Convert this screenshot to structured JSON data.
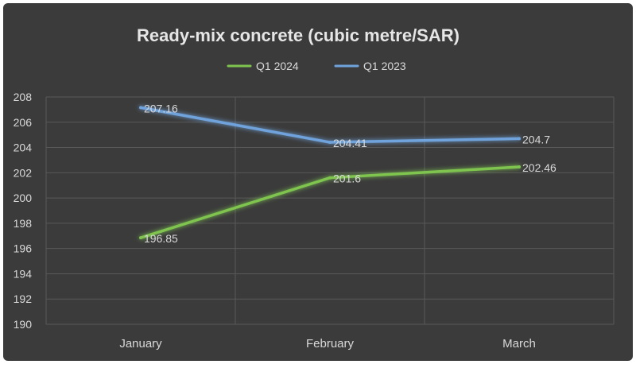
{
  "chart_data": {
    "type": "line",
    "title": "Ready-mix concrete (cubic metre/SAR)",
    "categories": [
      "January",
      "February",
      "March"
    ],
    "series": [
      {
        "name": "Q1 2024",
        "values": [
          196.85,
          201.6,
          202.46
        ],
        "labels": [
          "196.85",
          "201.6",
          "202.46"
        ],
        "color": "#7ec44f"
      },
      {
        "name": "Q1 2023",
        "values": [
          207.16,
          204.41,
          204.7
        ],
        "labels": [
          "207.16",
          "204.41",
          "204.7"
        ],
        "color": "#6fa3dc"
      }
    ],
    "ylim": [
      190,
      208
    ],
    "ytick_step": 2,
    "yticks": [
      "190",
      "192",
      "194",
      "196",
      "198",
      "200",
      "202",
      "204",
      "206",
      "208"
    ],
    "grid": true,
    "legend_position": "top-center",
    "xlabel": "",
    "ylabel": ""
  },
  "colors": {
    "background": "#3b3b3b",
    "gridline": "#595959",
    "text": "#d9d9d9",
    "title": "#e6e6e6"
  }
}
